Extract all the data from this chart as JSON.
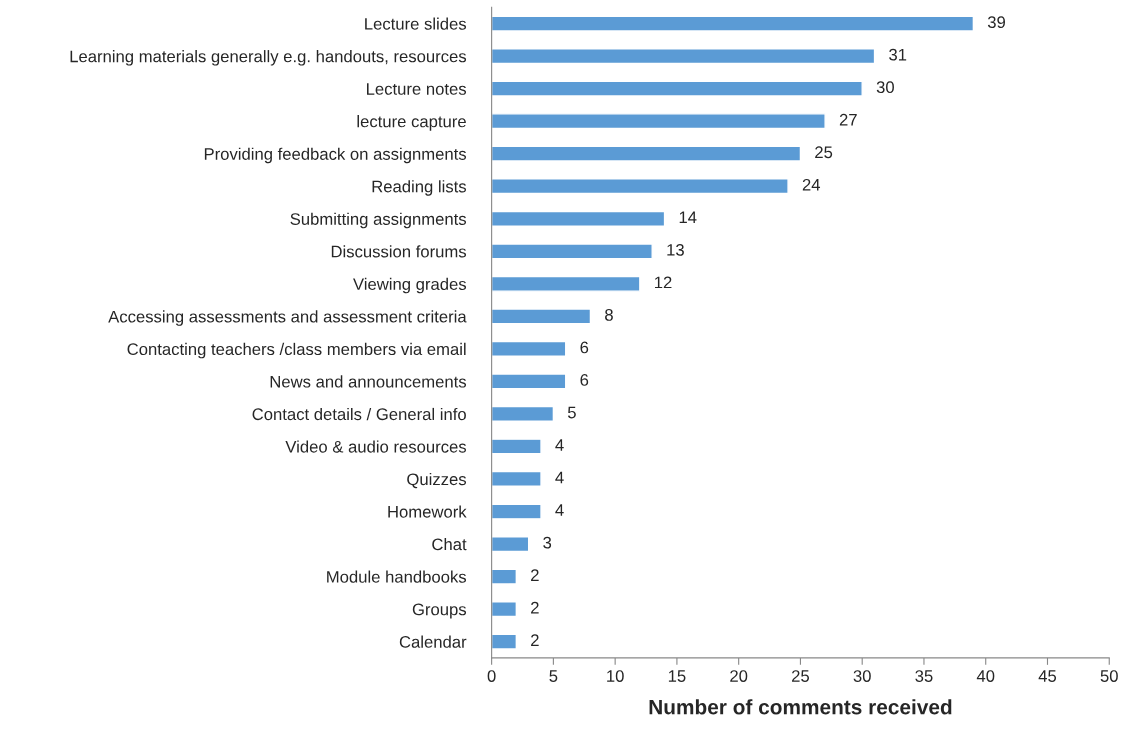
{
  "chart_data": {
    "type": "bar",
    "orientation": "horizontal",
    "xlabel": "Number of comments received",
    "categories": [
      "Lecture slides",
      "Learning materials generally e.g. handouts, resources",
      "Lecture notes",
      "lecture capture",
      "Providing feedback on assignments",
      "Reading lists",
      "Submitting assignments",
      "Discussion forums",
      "Viewing grades",
      "Accessing assessments and assessment criteria",
      "Contacting teachers /class members via email",
      "News and announcements",
      "Contact details / General info",
      "Video & audio resources",
      "Quizzes",
      "Homework",
      "Chat",
      "Module handbooks",
      "Groups",
      "Calendar"
    ],
    "values": [
      39,
      31,
      30,
      27,
      25,
      24,
      14,
      13,
      12,
      8,
      6,
      6,
      5,
      4,
      4,
      4,
      3,
      2,
      2,
      2
    ],
    "color": "#5b9bd5",
    "xlim": [
      0,
      50
    ],
    "xticks": [
      0,
      5,
      10,
      15,
      20,
      25,
      30,
      35,
      40,
      45,
      50
    ],
    "grid": false,
    "data_labels": true
  }
}
